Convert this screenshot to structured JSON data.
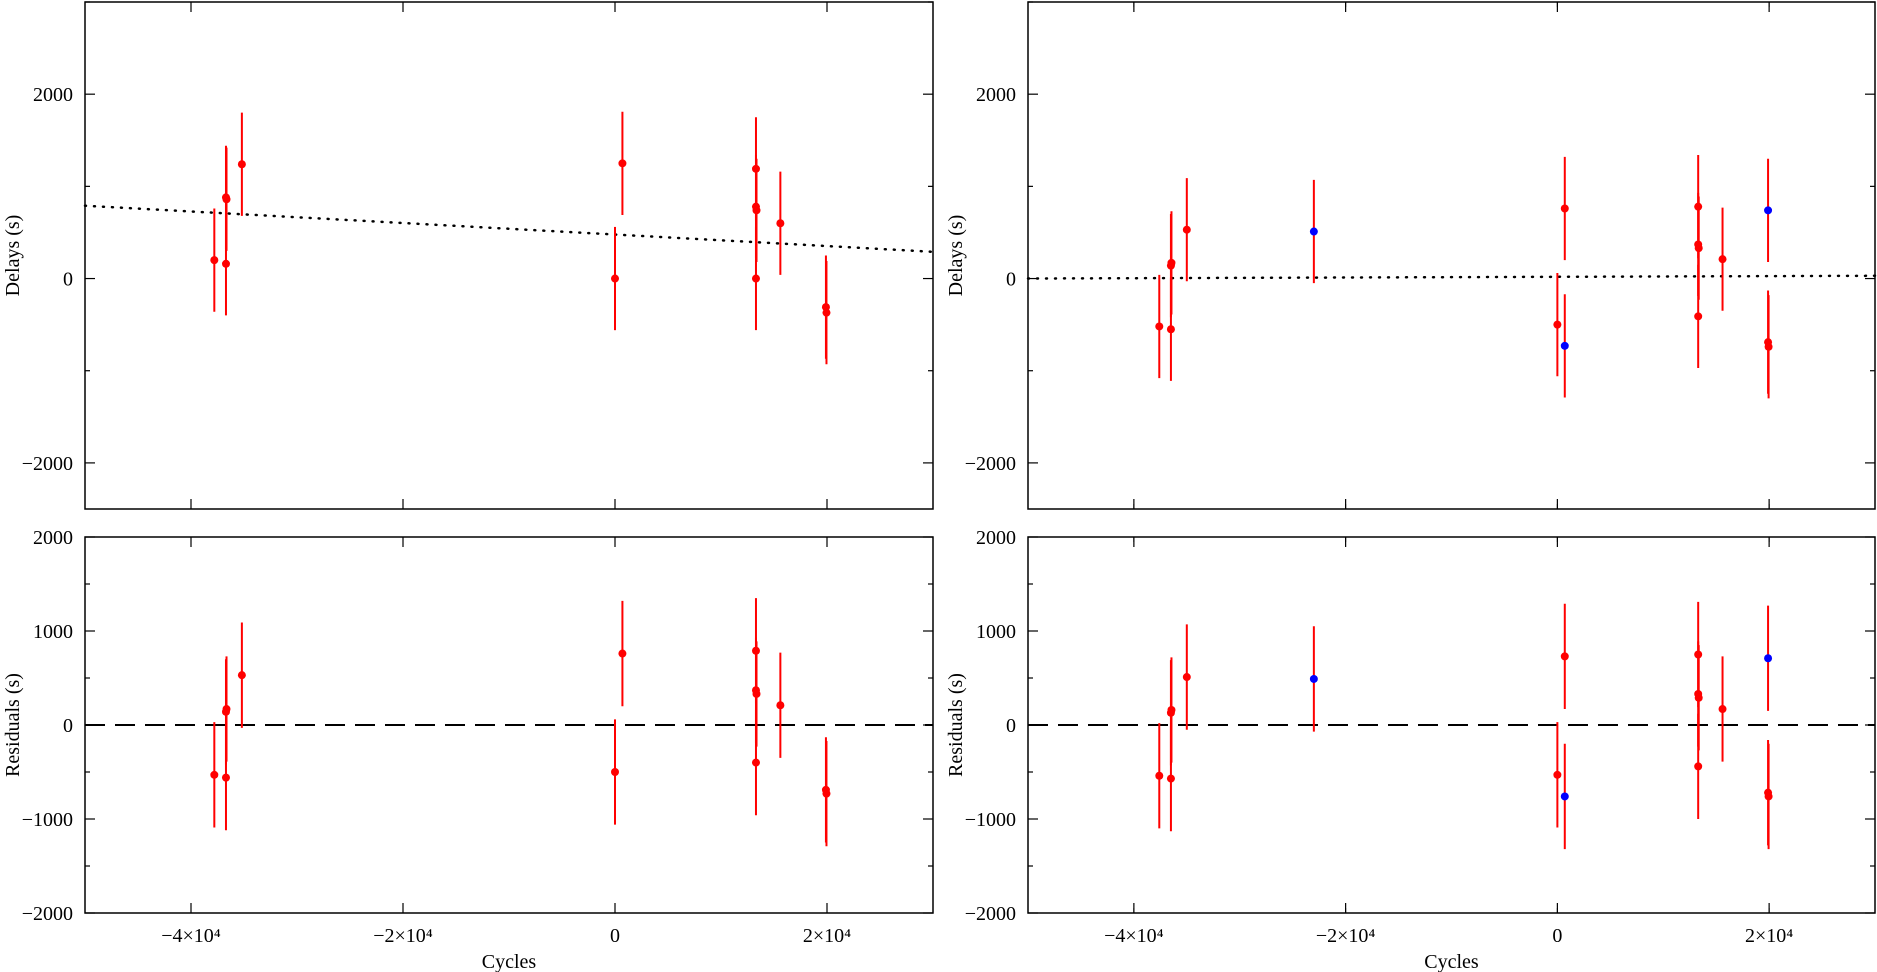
{
  "chart_data": [
    {
      "type": "scatter",
      "panel": "top-left",
      "xlabel": "",
      "ylabel": "Delays (s)",
      "xlim": [
        -50000,
        30000
      ],
      "ylim": [
        -2500,
        3000
      ],
      "yticks": [
        -2000,
        0,
        2000
      ],
      "ytick_labels": [
        "−2000",
        "0",
        "2000"
      ],
      "xticks": [
        -40000,
        -20000,
        0,
        20000
      ],
      "xtick_labels": [],
      "colors": {
        "red": "#ff0000",
        "blue": "#0000ff"
      },
      "fit_line": {
        "style": "dotted",
        "points": [
          [
            -50000,
            790
          ],
          [
            30000,
            290
          ]
        ]
      },
      "points": [
        {
          "x": -37800,
          "y": 200,
          "err": 560,
          "color": "red"
        },
        {
          "x": -36700,
          "y": 160,
          "err": 560,
          "color": "red"
        },
        {
          "x": -36700,
          "y": 880,
          "err": 560,
          "color": "red"
        },
        {
          "x": -36650,
          "y": 860,
          "err": 560,
          "color": "red"
        },
        {
          "x": -35200,
          "y": 1240,
          "err": 560,
          "color": "red"
        },
        {
          "x": 0,
          "y": 0,
          "err": 560,
          "color": "red"
        },
        {
          "x": 700,
          "y": 1250,
          "err": 560,
          "color": "red"
        },
        {
          "x": 13300,
          "y": 1190,
          "err": 560,
          "color": "red"
        },
        {
          "x": 13300,
          "y": 780,
          "err": 560,
          "color": "red"
        },
        {
          "x": 13350,
          "y": 740,
          "err": 560,
          "color": "red"
        },
        {
          "x": 13300,
          "y": 0,
          "err": 560,
          "color": "red"
        },
        {
          "x": 15600,
          "y": 600,
          "err": 560,
          "color": "red"
        },
        {
          "x": 19900,
          "y": -310,
          "err": 560,
          "color": "red"
        },
        {
          "x": 19950,
          "y": -370,
          "err": 560,
          "color": "red"
        }
      ]
    },
    {
      "type": "scatter",
      "panel": "top-right",
      "xlabel": "",
      "ylabel": "Delays (s)",
      "xlim": [
        -50000,
        30000
      ],
      "ylim": [
        -2500,
        3000
      ],
      "yticks": [
        -2000,
        0,
        2000
      ],
      "ytick_labels": [
        "−2000",
        "0",
        "2000"
      ],
      "xticks": [
        -40000,
        -20000,
        0,
        20000
      ],
      "xtick_labels": [],
      "colors": {
        "red": "#ff0000",
        "blue": "#0000ff"
      },
      "fit_line": {
        "style": "dotted",
        "points": [
          [
            -50000,
            0
          ],
          [
            30000,
            30
          ]
        ]
      },
      "points": [
        {
          "x": -37600,
          "y": -520,
          "err": 560,
          "color": "red"
        },
        {
          "x": -36500,
          "y": -550,
          "err": 560,
          "color": "red"
        },
        {
          "x": -36500,
          "y": 140,
          "err": 560,
          "color": "red"
        },
        {
          "x": -36450,
          "y": 170,
          "err": 560,
          "color": "red"
        },
        {
          "x": -35000,
          "y": 530,
          "err": 560,
          "color": "red"
        },
        {
          "x": -23000,
          "y": 510,
          "err": 560,
          "color": "blue"
        },
        {
          "x": 0,
          "y": -500,
          "err": 560,
          "color": "red"
        },
        {
          "x": 700,
          "y": 760,
          "err": 560,
          "color": "red"
        },
        {
          "x": 700,
          "y": -730,
          "err": 560,
          "color": "blue"
        },
        {
          "x": 13300,
          "y": 780,
          "err": 560,
          "color": "red"
        },
        {
          "x": 13300,
          "y": 370,
          "err": 560,
          "color": "red"
        },
        {
          "x": 13350,
          "y": 330,
          "err": 560,
          "color": "red"
        },
        {
          "x": 13300,
          "y": -410,
          "err": 560,
          "color": "red"
        },
        {
          "x": 15600,
          "y": 210,
          "err": 560,
          "color": "red"
        },
        {
          "x": 19900,
          "y": 740,
          "err": 560,
          "color": "blue"
        },
        {
          "x": 19900,
          "y": -690,
          "err": 560,
          "color": "red"
        },
        {
          "x": 19950,
          "y": -740,
          "err": 560,
          "color": "red"
        }
      ]
    },
    {
      "type": "scatter",
      "panel": "bottom-left",
      "xlabel": "Cycles",
      "ylabel": "Residuals (s)",
      "xlim": [
        -50000,
        30000
      ],
      "ylim": [
        -2000,
        2000
      ],
      "yticks": [
        -2000,
        -1000,
        0,
        1000,
        2000
      ],
      "ytick_labels": [
        "−2000",
        "−1000",
        "0",
        "1000",
        "2000"
      ],
      "xticks": [
        -40000,
        -20000,
        0,
        20000
      ],
      "xtick_labels": [
        "−4×10⁴",
        "−2×10⁴",
        "0",
        "2×10⁴"
      ],
      "colors": {
        "red": "#ff0000",
        "blue": "#0000ff"
      },
      "fit_line": {
        "style": "dashed",
        "points": [
          [
            -50000,
            0
          ],
          [
            30000,
            0
          ]
        ]
      },
      "points": [
        {
          "x": -37800,
          "y": -530,
          "err": 560,
          "color": "red"
        },
        {
          "x": -36700,
          "y": -560,
          "err": 560,
          "color": "red"
        },
        {
          "x": -36700,
          "y": 140,
          "err": 560,
          "color": "red"
        },
        {
          "x": -36650,
          "y": 170,
          "err": 560,
          "color": "red"
        },
        {
          "x": -35200,
          "y": 530,
          "err": 560,
          "color": "red"
        },
        {
          "x": 0,
          "y": -500,
          "err": 560,
          "color": "red"
        },
        {
          "x": 700,
          "y": 760,
          "err": 560,
          "color": "red"
        },
        {
          "x": 13300,
          "y": 790,
          "err": 560,
          "color": "red"
        },
        {
          "x": 13300,
          "y": 370,
          "err": 560,
          "color": "red"
        },
        {
          "x": 13350,
          "y": 330,
          "err": 560,
          "color": "red"
        },
        {
          "x": 13300,
          "y": -400,
          "err": 560,
          "color": "red"
        },
        {
          "x": 15600,
          "y": 210,
          "err": 560,
          "color": "red"
        },
        {
          "x": 19900,
          "y": -690,
          "err": 560,
          "color": "red"
        },
        {
          "x": 19950,
          "y": -730,
          "err": 560,
          "color": "red"
        }
      ]
    },
    {
      "type": "scatter",
      "panel": "bottom-right",
      "xlabel": "Cycles",
      "ylabel": "Residuals (s)",
      "xlim": [
        -50000,
        30000
      ],
      "ylim": [
        -2000,
        2000
      ],
      "yticks": [
        -2000,
        -1000,
        0,
        1000,
        2000
      ],
      "ytick_labels": [
        "−2000",
        "−1000",
        "0",
        "1000",
        "2000"
      ],
      "xticks": [
        -40000,
        -20000,
        0,
        20000
      ],
      "xtick_labels": [
        "−4×10⁴",
        "−2×10⁴",
        "0",
        "2×10⁴"
      ],
      "colors": {
        "red": "#ff0000",
        "blue": "#0000ff"
      },
      "fit_line": {
        "style": "dashed",
        "points": [
          [
            -50000,
            0
          ],
          [
            30000,
            0
          ]
        ]
      },
      "points": [
        {
          "x": -37600,
          "y": -540,
          "err": 560,
          "color": "red"
        },
        {
          "x": -36500,
          "y": -570,
          "err": 560,
          "color": "red"
        },
        {
          "x": -36500,
          "y": 130,
          "err": 560,
          "color": "red"
        },
        {
          "x": -36450,
          "y": 160,
          "err": 560,
          "color": "red"
        },
        {
          "x": -35000,
          "y": 510,
          "err": 560,
          "color": "red"
        },
        {
          "x": -23000,
          "y": 490,
          "err": 560,
          "color": "blue"
        },
        {
          "x": 0,
          "y": -530,
          "err": 560,
          "color": "red"
        },
        {
          "x": 700,
          "y": 730,
          "err": 560,
          "color": "red"
        },
        {
          "x": 700,
          "y": -760,
          "err": 560,
          "color": "blue"
        },
        {
          "x": 13300,
          "y": 750,
          "err": 560,
          "color": "red"
        },
        {
          "x": 13300,
          "y": 330,
          "err": 560,
          "color": "red"
        },
        {
          "x": 13350,
          "y": 290,
          "err": 560,
          "color": "red"
        },
        {
          "x": 13300,
          "y": -440,
          "err": 560,
          "color": "red"
        },
        {
          "x": 15600,
          "y": 170,
          "err": 560,
          "color": "red"
        },
        {
          "x": 19900,
          "y": 710,
          "err": 560,
          "color": "blue"
        },
        {
          "x": 19900,
          "y": -720,
          "err": 560,
          "color": "red"
        },
        {
          "x": 19950,
          "y": -760,
          "err": 560,
          "color": "red"
        }
      ]
    }
  ]
}
